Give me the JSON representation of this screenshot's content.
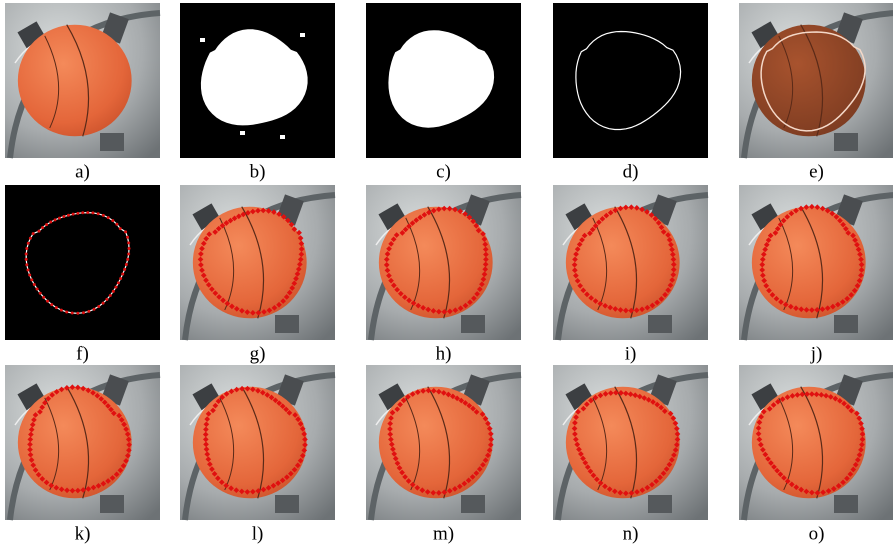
{
  "panels": [
    "a)",
    "b)",
    "c)",
    "d)",
    "e)",
    "f)",
    "g)",
    "h)",
    "i)",
    "j)",
    "k)",
    "l)",
    "m)",
    "n)",
    "o)"
  ]
}
